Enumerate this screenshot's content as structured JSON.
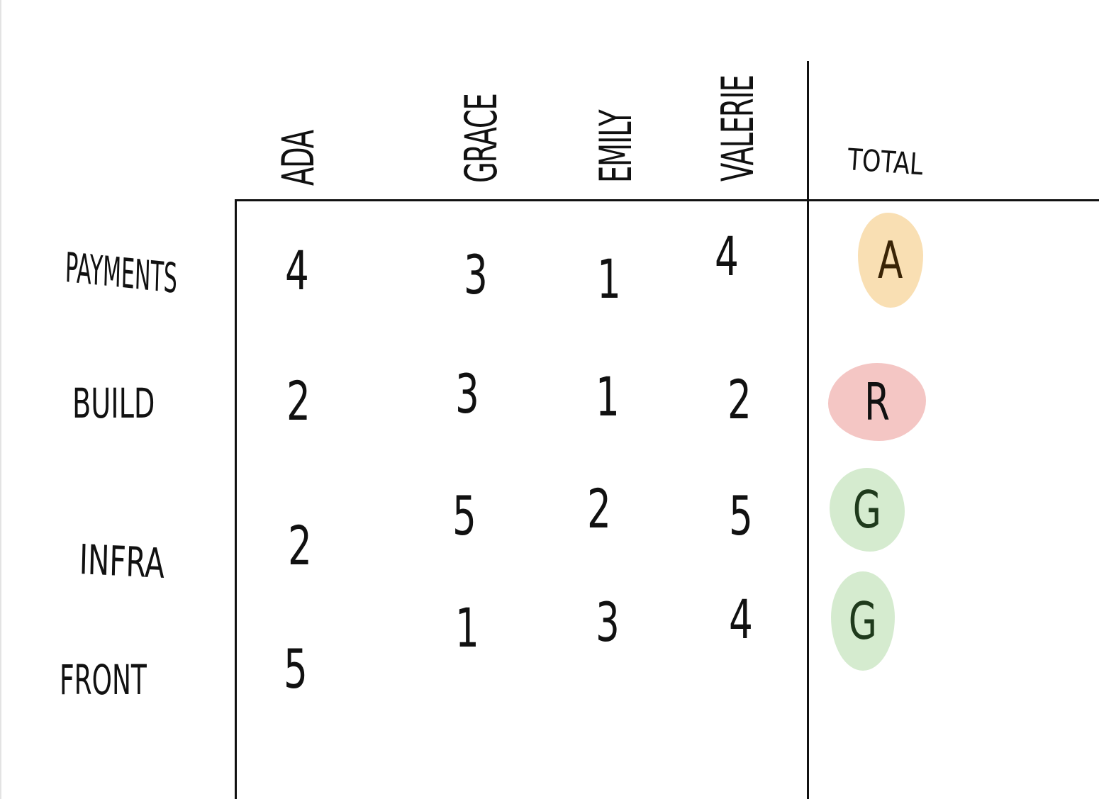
{
  "columns": [
    "ADA",
    "GRACE",
    "EMILY",
    "VALERIE"
  ],
  "total_header": "TOTAL",
  "rows": [
    {
      "label": "PAYMENTS",
      "scores": [
        "4",
        "3",
        "1",
        "4"
      ],
      "total": "A"
    },
    {
      "label": "BUILD",
      "scores": [
        "2",
        "3",
        "1",
        "2"
      ],
      "total": "R"
    },
    {
      "label": "INFRA",
      "scores": [
        "2",
        "5",
        "2",
        "5"
      ],
      "total": "G"
    },
    {
      "label": "FRONT",
      "scores": [
        "5",
        "1",
        "3",
        "4"
      ],
      "total": "G"
    }
  ],
  "status_colors": {
    "A": "#f9dfb3",
    "R": "#f4c6c4",
    "G": "#d5ebcf"
  },
  "status_text_colors": {
    "A": "#3a2406",
    "R": "#111111",
    "G": "#1f3a1c"
  }
}
